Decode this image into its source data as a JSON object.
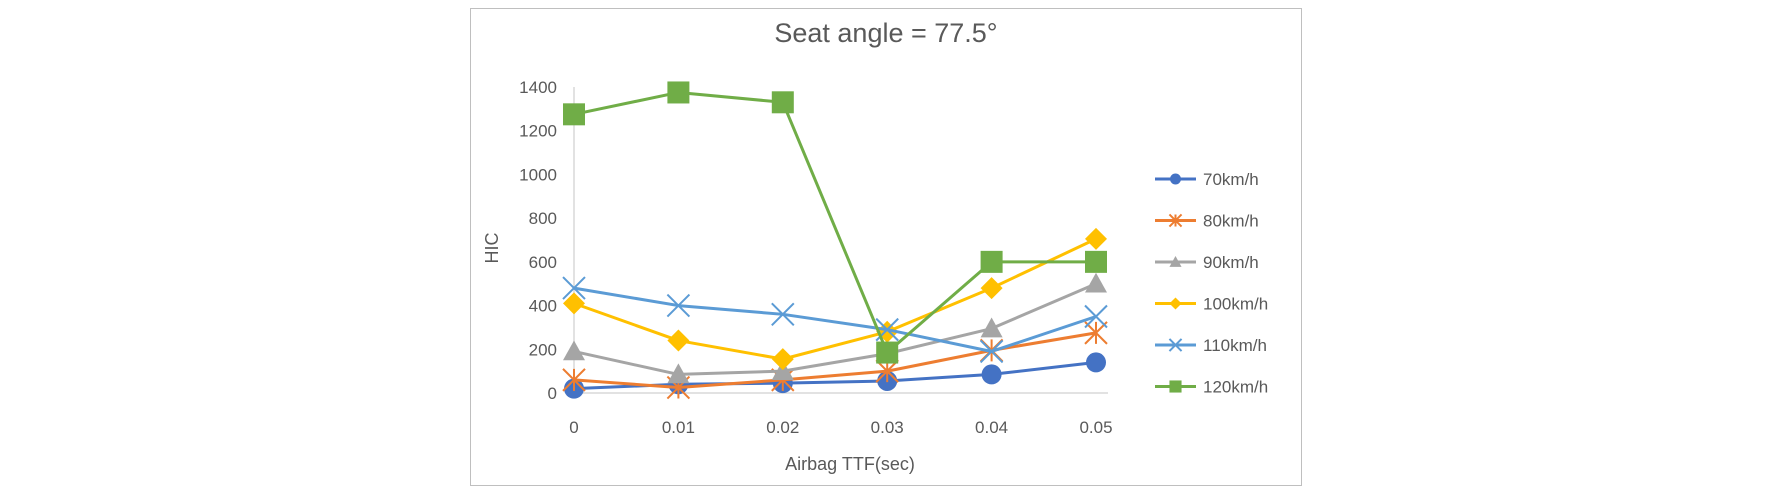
{
  "chart_data": {
    "type": "line",
    "title": "Seat angle = 77.5°",
    "xlabel": "Airbag TTF(sec)",
    "ylabel": "HIC",
    "categories": [
      "0",
      "0.01",
      "0.02",
      "0.03",
      "0.04",
      "0.05"
    ],
    "ylim": [
      0,
      1400
    ],
    "yticks": [
      "0",
      "200",
      "400",
      "600",
      "800",
      "1000",
      "1200",
      "1400"
    ],
    "grid": false,
    "legend": "right",
    "series": [
      {
        "name": "70km/h",
        "values": [
          20,
          40,
          45,
          55,
          85,
          140
        ],
        "color": "#4472c4",
        "marker": "circle"
      },
      {
        "name": "80km/h",
        "values": [
          60,
          25,
          60,
          100,
          195,
          275
        ],
        "color": "#ed7d31",
        "marker": "asterisk"
      },
      {
        "name": "90km/h",
        "values": [
          190,
          85,
          100,
          180,
          295,
          500
        ],
        "color": "#a5a5a5",
        "marker": "triangle"
      },
      {
        "name": "100km/h",
        "values": [
          410,
          240,
          155,
          280,
          480,
          705
        ],
        "color": "#ffc000",
        "marker": "diamond"
      },
      {
        "name": "110km/h",
        "values": [
          480,
          400,
          360,
          290,
          190,
          350
        ],
        "color": "#5b9bd5",
        "marker": "x"
      },
      {
        "name": "120km/h",
        "values": [
          1275,
          1375,
          1330,
          185,
          600,
          600
        ],
        "color": "#70ad47",
        "marker": "square"
      }
    ]
  }
}
